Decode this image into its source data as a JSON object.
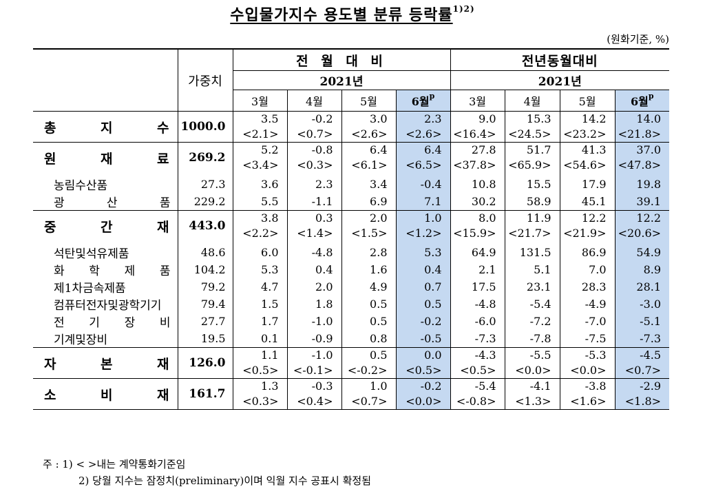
{
  "title": "수입물가지수 용도별 분류 등락률",
  "title_sup": "1)2)",
  "unit": "(원화기준, %)",
  "headers": {
    "weight": "가중치",
    "mom": "전 월 대 비",
    "yoy": "전년동월대비",
    "year": "2021년",
    "months": [
      "3월",
      "4월",
      "5월",
      "6월"
    ],
    "prelim_mark": "p"
  },
  "rows": [
    {
      "label": "총 지 수",
      "weight": "1000.0",
      "v": [
        "3.5",
        "-0.2",
        "3.0",
        "2.3",
        "9.0",
        "15.3",
        "14.2",
        "14.0"
      ],
      "c": [
        "<2.1>",
        "<0.7>",
        "<2.6>",
        "<2.6>",
        "<16.4>",
        "<24.5>",
        "<23.2>",
        "<21.8>"
      ]
    },
    {
      "label": "원 재 료",
      "weight": "269.2",
      "v": [
        "5.2",
        "-0.8",
        "6.4",
        "6.4",
        "27.8",
        "51.7",
        "41.3",
        "37.0"
      ],
      "c": [
        "<3.4>",
        "<0.3>",
        "<6.1>",
        "<6.5>",
        "<37.8>",
        "<65.9>",
        "<54.6>",
        "<47.8>"
      ],
      "subs": [
        {
          "label": "농림수산품",
          "weight": "27.3",
          "v": [
            "3.6",
            "2.3",
            "3.4",
            "-0.4",
            "10.8",
            "15.5",
            "17.9",
            "19.8"
          ]
        },
        {
          "label": "광 산 품",
          "weight": "229.2",
          "v": [
            "5.5",
            "-1.1",
            "6.9",
            "7.1",
            "30.2",
            "58.9",
            "45.1",
            "39.1"
          ]
        }
      ]
    },
    {
      "label": "중 간 재",
      "weight": "443.0",
      "v": [
        "3.8",
        "0.3",
        "2.0",
        "1.0",
        "8.0",
        "11.9",
        "12.2",
        "12.2"
      ],
      "c": [
        "<2.2>",
        "<1.4>",
        "<1.5>",
        "<1.2>",
        "<15.9>",
        "<21.7>",
        "<21.9>",
        "<20.6>"
      ],
      "subs": [
        {
          "label": "석탄및석유제품",
          "weight": "48.6",
          "v": [
            "6.0",
            "-4.8",
            "2.8",
            "5.3",
            "64.9",
            "131.5",
            "86.9",
            "54.9"
          ]
        },
        {
          "label": "화 학 제 품",
          "weight": "104.2",
          "v": [
            "5.3",
            "0.4",
            "1.6",
            "0.4",
            "2.1",
            "5.1",
            "7.0",
            "8.9"
          ]
        },
        {
          "label": "제1차금속제품",
          "weight": "79.2",
          "v": [
            "4.7",
            "2.0",
            "4.9",
            "0.7",
            "17.5",
            "23.1",
            "28.3",
            "28.1"
          ]
        },
        {
          "label": "컴퓨터전자및광학기기",
          "weight": "79.4",
          "v": [
            "1.5",
            "1.8",
            "0.5",
            "0.5",
            "-4.8",
            "-5.4",
            "-4.9",
            "-3.0"
          ]
        },
        {
          "label": "전 기 장 비",
          "weight": "27.7",
          "v": [
            "1.7",
            "-1.0",
            "0.5",
            "-0.2",
            "-6.0",
            "-7.2",
            "-7.0",
            "-5.1"
          ]
        },
        {
          "label": "기계및장비",
          "weight": "19.5",
          "v": [
            "0.1",
            "-0.9",
            "0.8",
            "-0.5",
            "-7.3",
            "-7.8",
            "-7.5",
            "-7.3"
          ]
        }
      ]
    },
    {
      "label": "자 본 재",
      "weight": "126.0",
      "v": [
        "1.1",
        "-1.0",
        "0.5",
        "0.0",
        "-4.3",
        "-5.5",
        "-5.3",
        "-4.5"
      ],
      "c": [
        "<0.5>",
        "<-0.1>",
        "<-0.2>",
        "<0.5>",
        "<0.5>",
        "<0.0>",
        "<0.0>",
        "<0.7>"
      ]
    },
    {
      "label": "소 비 재",
      "weight": "161.7",
      "v": [
        "1.3",
        "-0.3",
        "1.0",
        "-0.2",
        "-5.4",
        "-4.1",
        "-3.8",
        "-2.9"
      ],
      "c": [
        "<0.3>",
        "<0.4>",
        "<0.7>",
        "<0.0>",
        "<-0.8>",
        "<1.3>",
        "<1.6>",
        "<1.8>"
      ]
    }
  ],
  "notes": [
    "주 :  1) < >내는 계약통화기준임",
    "2) 당월 지수는 잠정치(preliminary)이며 익월 지수 공표시 확정됨"
  ]
}
